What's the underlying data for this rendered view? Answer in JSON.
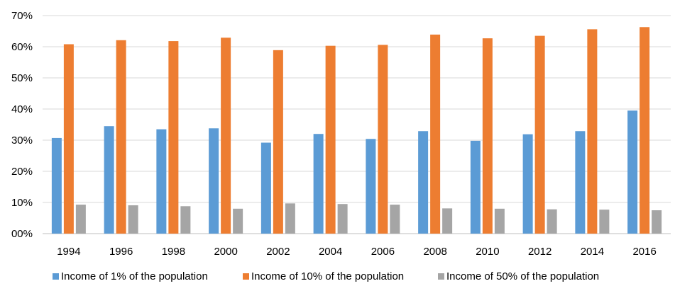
{
  "chart_data": {
    "type": "bar",
    "title": "",
    "xlabel": "",
    "ylabel": "",
    "categories": [
      "1994",
      "1996",
      "1998",
      "2000",
      "2002",
      "2004",
      "2006",
      "2008",
      "2010",
      "2012",
      "2014",
      "2016"
    ],
    "series": [
      {
        "name": "Income of 1% of the population",
        "color": "#5B9BD5",
        "values": [
          0.307,
          0.345,
          0.335,
          0.338,
          0.292,
          0.32,
          0.304,
          0.329,
          0.298,
          0.319,
          0.329,
          0.395
        ]
      },
      {
        "name": "Income of 10% of the population",
        "color": "#ED7D31",
        "values": [
          0.608,
          0.621,
          0.618,
          0.629,
          0.589,
          0.603,
          0.606,
          0.639,
          0.627,
          0.635,
          0.656,
          0.663
        ]
      },
      {
        "name": "Income of 50% of the population",
        "color": "#A5A5A5",
        "values": [
          0.093,
          0.091,
          0.088,
          0.08,
          0.097,
          0.095,
          0.093,
          0.081,
          0.08,
          0.078,
          0.077,
          0.075
        ]
      }
    ],
    "ylim": [
      0,
      0.7
    ],
    "yticks": [
      {
        "value": 0,
        "label": "00%"
      },
      {
        "value": 0.1,
        "label": "10%"
      },
      {
        "value": 0.2,
        "label": "20%"
      },
      {
        "value": 0.3,
        "label": "30%"
      },
      {
        "value": 0.4,
        "label": "40%"
      },
      {
        "value": 0.5,
        "label": "50%"
      },
      {
        "value": 0.6,
        "label": "60%"
      },
      {
        "value": 0.7,
        "label": "70%"
      }
    ],
    "grid": true,
    "legend_position": "bottom",
    "gridline_color": "#D9D9D9"
  }
}
